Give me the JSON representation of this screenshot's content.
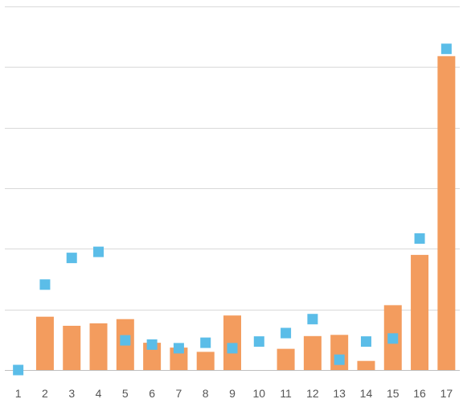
{
  "chart_data": {
    "type": "bar",
    "categories": [
      "1",
      "2",
      "3",
      "4",
      "5",
      "6",
      "7",
      "8",
      "9",
      "10",
      "11",
      "12",
      "13",
      "14",
      "15",
      "16",
      "17"
    ],
    "series": [
      {
        "mark": "bar",
        "color": "#f39c5e",
        "values": [
          0,
          0.88,
          0.73,
          0.77,
          0.84,
          0.45,
          0.37,
          0.3,
          0.9,
          0,
          0.35,
          0.56,
          0.58,
          0.15,
          1.07,
          1.9,
          5.18
        ]
      },
      {
        "mark": "square",
        "color": "#5bbde8",
        "values": [
          0,
          1.41,
          1.85,
          1.95,
          0.49,
          0.42,
          0.36,
          0.45,
          0.36,
          0.47,
          0.61,
          0.84,
          0.17,
          0.47,
          0.52,
          2.17,
          5.3
        ]
      }
    ],
    "ylim": [
      0,
      6
    ],
    "grid": true,
    "legend": "none"
  }
}
